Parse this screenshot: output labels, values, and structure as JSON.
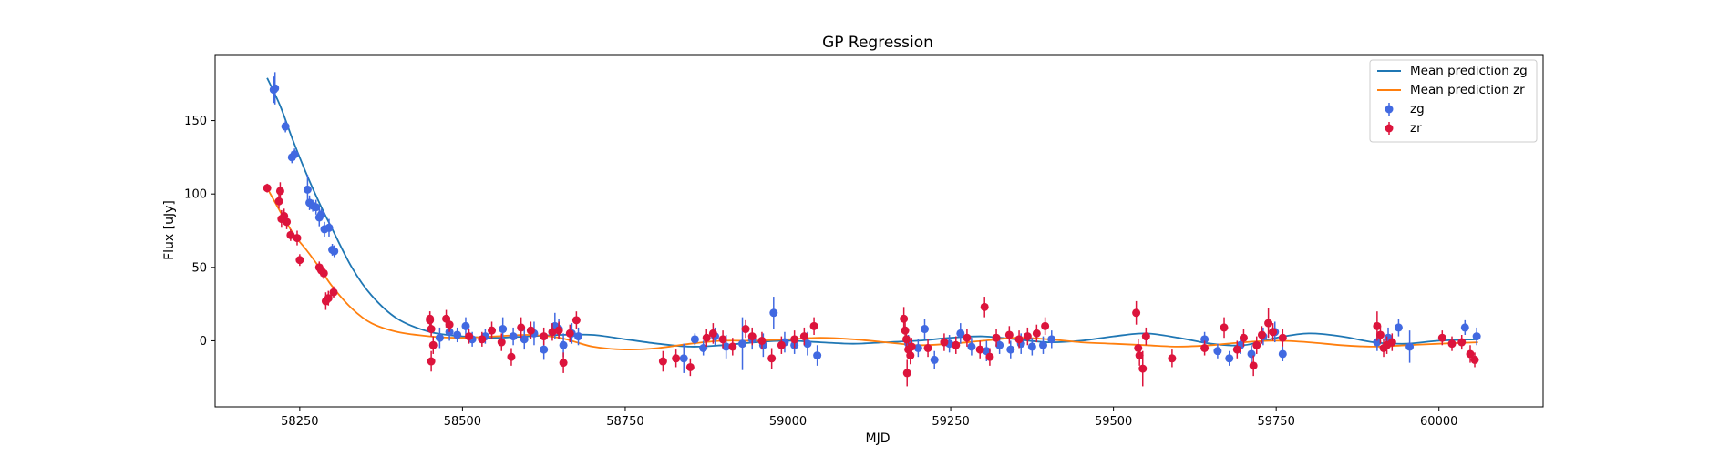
{
  "chart_data": {
    "type": "scatter",
    "title": "GP Regression",
    "xlabel": "MJD",
    "ylabel": "Flux [uJy]",
    "xlim": [
      58120,
      60160
    ],
    "ylim": [
      -45,
      195
    ],
    "xticks": [
      58250,
      58500,
      58750,
      59000,
      59250,
      59500,
      59750,
      60000
    ],
    "yticks": [
      0,
      50,
      100,
      150
    ],
    "grid": false,
    "legend": "top-right",
    "legend_entries": [
      "Mean prediction zg",
      "Mean prediction zr",
      "zg",
      "zr"
    ],
    "lines": [
      {
        "name": "Mean prediction zg",
        "color": "#1f77b4",
        "x": [
          58200,
          58220,
          58240,
          58260,
          58280,
          58300,
          58330,
          58360,
          58400,
          58450,
          58500,
          58550,
          58600,
          58650,
          58700,
          58750,
          58800,
          58850,
          58900,
          58950,
          59000,
          59050,
          59100,
          59150,
          59200,
          59250,
          59300,
          59350,
          59400,
          59450,
          59500,
          59550,
          59600,
          59650,
          59700,
          59750,
          59800,
          59850,
          59900,
          59950,
          60000,
          60060
        ],
        "y": [
          179,
          160,
          136,
          114,
          94,
          76,
          50,
          31,
          15,
          6,
          3,
          2,
          3,
          4,
          4,
          1,
          -2,
          -4,
          -3,
          -1,
          0,
          -1,
          -2,
          -1,
          0,
          2,
          3,
          1,
          -1,
          0,
          3,
          5,
          2,
          -2,
          -3,
          2,
          5,
          3,
          -1,
          -2,
          0,
          1
        ]
      },
      {
        "name": "Mean prediction zr",
        "color": "#ff7f0e",
        "x": [
          58200,
          58220,
          58240,
          58260,
          58280,
          58300,
          58330,
          58360,
          58400,
          58450,
          58500,
          58550,
          58600,
          58650,
          58700,
          58750,
          58800,
          58850,
          58900,
          58950,
          59000,
          59050,
          59100,
          59150,
          59200,
          59250,
          59300,
          59350,
          59400,
          59450,
          59500,
          59550,
          59600,
          59650,
          59700,
          59750,
          59800,
          59850,
          59900,
          59950,
          60000,
          60060
        ],
        "y": [
          104,
          88,
          73,
          62,
          50,
          37,
          22,
          12,
          6,
          3,
          2,
          3,
          4,
          2,
          -4,
          -6,
          -5,
          -2,
          0,
          0,
          1,
          2,
          1,
          -1,
          -3,
          -2,
          0,
          2,
          1,
          -1,
          -2,
          -3,
          -4,
          -3,
          -1,
          0,
          -1,
          -3,
          -4,
          -3,
          -2,
          -1
        ]
      }
    ],
    "series": [
      {
        "name": "zg",
        "color": "#4169e1",
        "x": [
          58210,
          58212,
          58228,
          58238,
          58242,
          58262,
          58265,
          58270,
          58275,
          58280,
          58283,
          58288,
          58295,
          58300,
          58303,
          58465,
          58480,
          58492,
          58505,
          58515,
          58535,
          58562,
          58578,
          58595,
          58610,
          58625,
          58642,
          58648,
          58655,
          58668,
          58678,
          58840,
          58857,
          58870,
          58888,
          58905,
          58930,
          58945,
          58962,
          58978,
          58995,
          59010,
          59030,
          59045,
          59185,
          59200,
          59210,
          59225,
          59248,
          59265,
          59282,
          59305,
          59325,
          59342,
          59358,
          59375,
          59392,
          59405,
          59640,
          59660,
          59678,
          59695,
          59712,
          59730,
          59748,
          59760,
          59905,
          59922,
          59938,
          59955,
          60040,
          60058
        ],
        "y": [
          171,
          172,
          146,
          125,
          127,
          103,
          94,
          92,
          91,
          84,
          86,
          76,
          77,
          62,
          61,
          2,
          6,
          4,
          10,
          1,
          3,
          8,
          3,
          1,
          5,
          -6,
          10,
          8,
          -3,
          5,
          3,
          -12,
          1,
          -5,
          3,
          -4,
          -2,
          1,
          -3,
          19,
          -1,
          -3,
          -2,
          -10,
          -2,
          -5,
          8,
          -13,
          -2,
          5,
          -4,
          -7,
          -3,
          -6,
          -2,
          -4,
          -3,
          1,
          1,
          -7,
          -12,
          -3,
          -9,
          3,
          6,
          -9,
          -1,
          2,
          9,
          -4,
          9,
          3
        ],
        "err": [
          9,
          11,
          4,
          4,
          4,
          10,
          5,
          4,
          5,
          6,
          4,
          5,
          6,
          4,
          4,
          7,
          6,
          5,
          6,
          5,
          5,
          8,
          6,
          7,
          8,
          7,
          9,
          7,
          8,
          7,
          6,
          10,
          4,
          5,
          6,
          8,
          18,
          7,
          8,
          11,
          7,
          6,
          8,
          7,
          6,
          6,
          7,
          6,
          6,
          7,
          6,
          7,
          6,
          6,
          7,
          6,
          6,
          6,
          5,
          5,
          5,
          6,
          6,
          6,
          7,
          5,
          6,
          7,
          6,
          11,
          5,
          6
        ]
      },
      {
        "name": "zr",
        "color": "#dc143c",
        "x": [
          58200,
          58218,
          58220,
          58222,
          58226,
          58230,
          58236,
          58246,
          58250,
          58280,
          58283,
          58287,
          58290,
          58294,
          58302,
          58450,
          58452,
          58455,
          58450,
          58452,
          58475,
          58480,
          58510,
          58530,
          58545,
          58560,
          58575,
          58590,
          58605,
          58625,
          58638,
          58648,
          58655,
          58665,
          58675,
          58808,
          58828,
          58850,
          58875,
          58885,
          58900,
          58915,
          58935,
          58945,
          58960,
          58975,
          58990,
          59010,
          59025,
          59040,
          59178,
          59180,
          59182,
          59185,
          59188,
          59190,
          59183,
          59215,
          59240,
          59258,
          59275,
          59295,
          59302,
          59310,
          59320,
          59340,
          59355,
          59368,
          59382,
          59395,
          59535,
          59538,
          59540,
          59545,
          59550,
          59590,
          59640,
          59670,
          59690,
          59700,
          59715,
          59720,
          59728,
          59738,
          59745,
          59760,
          59905,
          59910,
          59915,
          59920,
          59928,
          60005,
          60020,
          60035,
          60048,
          60055
        ],
        "y": [
          104,
          95,
          102,
          83,
          85,
          81,
          72,
          70,
          55,
          50,
          48,
          46,
          27,
          29,
          33,
          14,
          8,
          -3,
          15,
          -14,
          15,
          11,
          3,
          1,
          7,
          -1,
          -11,
          9,
          7,
          3,
          6,
          7,
          -15,
          5,
          14,
          -14,
          -12,
          -18,
          2,
          5,
          1,
          -4,
          8,
          3,
          0,
          -12,
          -3,
          1,
          3,
          10,
          15,
          7,
          1,
          -6,
          -10,
          -4,
          -22,
          -5,
          -1,
          -3,
          2,
          -6,
          23,
          -11,
          2,
          4,
          1,
          3,
          5,
          10,
          19,
          -5,
          -10,
          -19,
          3,
          -12,
          -5,
          9,
          -6,
          2,
          -17,
          -3,
          4,
          12,
          6,
          2,
          10,
          4,
          -5,
          -3,
          -1,
          2,
          -2,
          -1,
          -9,
          -13
        ],
        "err": [
          3,
          5,
          6,
          6,
          5,
          5,
          4,
          5,
          4,
          4,
          4,
          4,
          6,
          5,
          4,
          6,
          5,
          6,
          5,
          7,
          6,
          5,
          5,
          5,
          6,
          6,
          6,
          7,
          6,
          6,
          6,
          6,
          7,
          6,
          6,
          7,
          6,
          6,
          6,
          7,
          6,
          6,
          6,
          6,
          6,
          7,
          6,
          6,
          6,
          6,
          8,
          7,
          7,
          6,
          6,
          6,
          9,
          6,
          6,
          6,
          6,
          6,
          7,
          6,
          6,
          6,
          6,
          6,
          6,
          6,
          8,
          6,
          7,
          12,
          6,
          6,
          5,
          7,
          6,
          6,
          7,
          6,
          6,
          10,
          6,
          6,
          10,
          6,
          6,
          6,
          6,
          5,
          5,
          5,
          6,
          5
        ]
      }
    ]
  }
}
